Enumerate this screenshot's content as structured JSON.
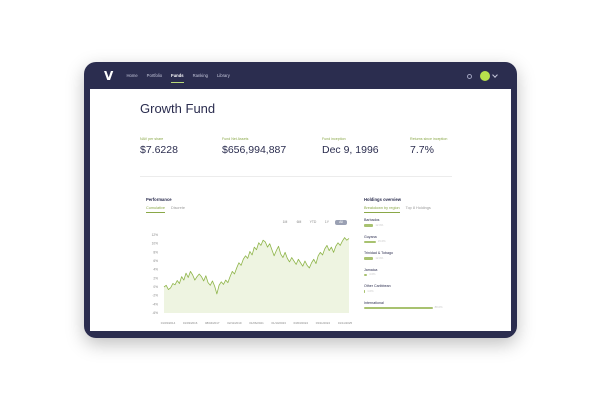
{
  "brand": {
    "logo": "V",
    "accent": "#b8d87a",
    "navy": "#2b2d4f"
  },
  "nav": {
    "items": [
      "Home",
      "Portfolio",
      "Funds",
      "Ranking",
      "Library"
    ],
    "active_index": 2
  },
  "page": {
    "title": "Growth Fund"
  },
  "stats": [
    {
      "label": "NAV per share",
      "value": "$7.6228"
    },
    {
      "label": "Fund Net Assets",
      "value": "$656,994,887"
    },
    {
      "label": "Fund inception",
      "value": "Dec 9, 1996"
    },
    {
      "label": "Returns since inception",
      "value": "7.7%"
    }
  ],
  "performance": {
    "title": "Performance",
    "tabs": [
      "Cumulative",
      "Discrete"
    ],
    "active_tab": 0,
    "ranges": [
      "1M",
      "6M",
      "YTD",
      "1Y",
      "All"
    ],
    "active_range": 4
  },
  "holdings": {
    "title": "Holdings overview",
    "tabs": [
      "Breakdown by region",
      "Top 8 Holdings"
    ],
    "active_tab": 0,
    "items": [
      {
        "name": "Barbados",
        "value": "12.0%",
        "fraction": 0.12
      },
      {
        "name": "Guyana",
        "value": "15.0%",
        "fraction": 0.15
      },
      {
        "name": "Trinidad & Tobago",
        "value": "12.0%",
        "fraction": 0.12
      },
      {
        "name": "Jamaica",
        "value": "4.0%",
        "fraction": 0.04
      },
      {
        "name": "Other Caribbean",
        "value": "1.0%",
        "fraction": 0.01
      },
      {
        "name": "International",
        "value": "88.0%",
        "fraction": 0.88
      }
    ]
  },
  "chart_data": {
    "type": "area",
    "title": "",
    "xlabel": "",
    "ylabel": "",
    "yticks": [
      "12%",
      "10%",
      "8%",
      "6%",
      "4%",
      "2%",
      "0%",
      "-2%",
      "-4%",
      "-6%"
    ],
    "ylim": [
      -6,
      12
    ],
    "xticks": [
      "01/03/2014",
      "01/03/2016",
      "08/04/2017",
      "02/11/2019",
      "01/06/2021",
      "01/10/2023",
      "03/03/2024",
      "03/11/2024",
      "01/11/2025"
    ],
    "values": [
      0.0,
      0.4,
      -0.6,
      -0.2,
      0.8,
      0.5,
      1.5,
      0.8,
      2.4,
      1.6,
      3.2,
      2.2,
      3.6,
      2.8,
      1.6,
      2.4,
      3.0,
      2.4,
      1.4,
      2.6,
      1.0,
      0.4,
      1.4,
      0.2,
      -1.6,
      0.4,
      1.2,
      0.6,
      1.6,
      1.0,
      2.4,
      3.6,
      3.0,
      4.4,
      5.6,
      5.0,
      6.4,
      7.2,
      6.6,
      8.2,
      7.4,
      9.2,
      8.6,
      10.2,
      9.6,
      10.8,
      10.4,
      9.2,
      10.0,
      8.6,
      7.2,
      8.4,
      9.4,
      7.6,
      6.8,
      8.0,
      6.6,
      5.8,
      6.8,
      6.0,
      5.2,
      6.4,
      5.6,
      4.8,
      6.0,
      5.0,
      4.4,
      5.6,
      6.4,
      5.4,
      7.2,
      8.0,
      7.4,
      8.8,
      9.6,
      8.4,
      9.2,
      8.0,
      9.4,
      10.2,
      9.6,
      10.6,
      11.4,
      10.8,
      11.2
    ],
    "grid": false,
    "legend": "none",
    "line_color": "#8fb54a",
    "fill_color": "#eef4e1"
  }
}
